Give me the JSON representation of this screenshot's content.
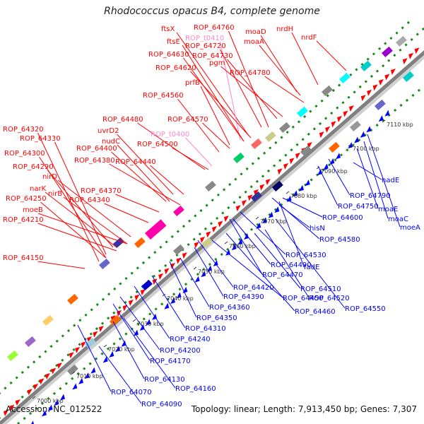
{
  "title": "Rhodococcus opacus B4, complete genome",
  "accession": "Accession: NC_012522",
  "summary": "Topology: linear; Length: 7,913,450 bp; Genes: 7,307",
  "colors": {
    "forward": "#ff0000",
    "reverse": "#0000ff",
    "trna": "#ff88cc",
    "backbone": "#808080",
    "tick": "#1a8a1a"
  },
  "scale": [
    "7000 kbp",
    "7010 kbp",
    "7020 kbp",
    "7030 kbp",
    "7040 kbp",
    "7050 kbp",
    "7060 kbp",
    "7070 kbp",
    "7080 kbp",
    "7090 kbp",
    "7100 kbp",
    "7110 kbp"
  ],
  "forward_labels": [
    "ftsX",
    "ROP_t0410",
    "ftsE",
    "ROP_64760",
    "ROP_64720",
    "moaD",
    "moaA",
    "nrdH",
    "nrdF",
    "ROP_64630",
    "ROP_64730",
    "ROP_64620",
    "pgm",
    "ROP_64780",
    "prfB",
    "ROP_64560",
    "ROP_64480",
    "ROP_64570",
    "uvrD2",
    "ROP_t0400",
    "ROP_64320",
    "ROP_64330",
    "nudC",
    "ROP_64400",
    "ROP_64500",
    "ROP_64300",
    "ROP_64380",
    "ROP_64440",
    "ROP_64290",
    "nirD",
    "narK",
    "nirB",
    "ROP_64370",
    "ROP_64250",
    "ROP_64340",
    "moeB",
    "ROP_64210",
    "ROP_64150"
  ],
  "reverse_labels": [
    "nadE",
    "ROP_64790",
    "ROP_64750",
    "moaE",
    "moaC",
    "moeA",
    "ROP_64600",
    "hisN",
    "ROP_64580",
    "ROP_64530",
    "fadE",
    "ROP_64490",
    "ROP_64470",
    "ROP_64510",
    "ROP_64420",
    "ROP_64520",
    "ROP_64390",
    "ROP_64450",
    "ROP_64550",
    "ROP_64360",
    "ROP_64460",
    "ROP_64350",
    "ROP_64310",
    "ROP_64240",
    "ROP_64200",
    "ROP_64170",
    "ROP_64130",
    "ROP_64160",
    "ROP_64070",
    "ROP_64090"
  ]
}
